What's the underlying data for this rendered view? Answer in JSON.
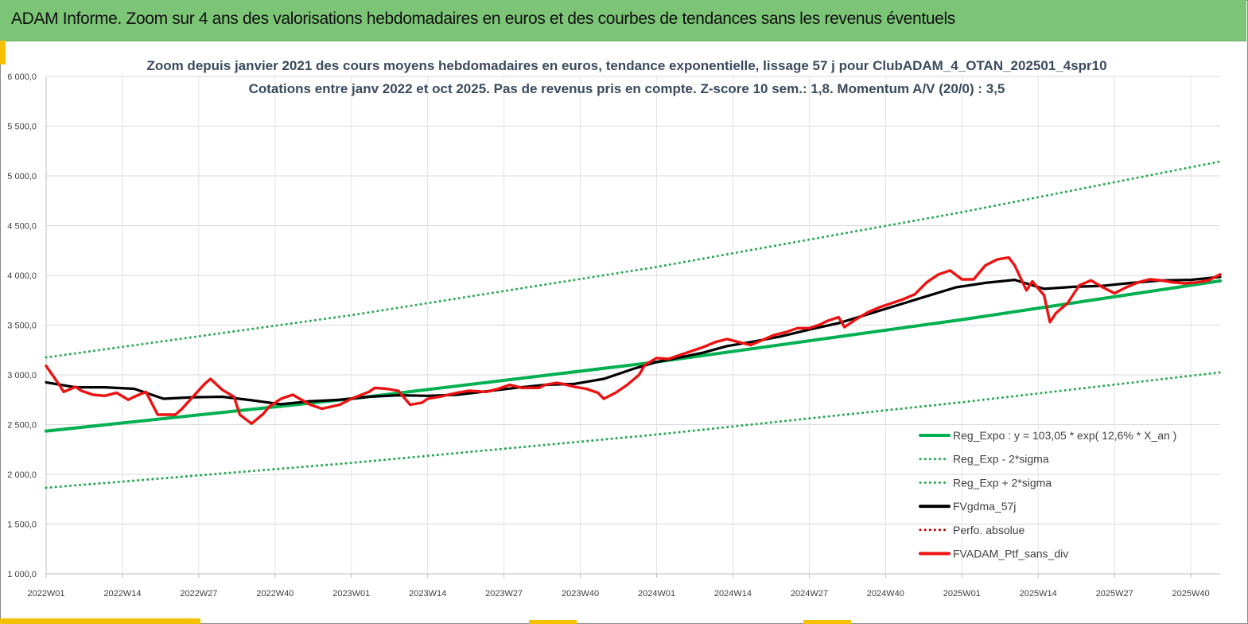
{
  "header": {
    "title": "ADAM Informe. Zoom sur 4 ans des valorisations hebdomadaires en euros et des courbes de tendances sans les revenus éventuels"
  },
  "colors": {
    "header_bg": "#7cc576",
    "accent_gold": "#f5c000",
    "trend_green": "#00b050",
    "band_green": "#22a94f",
    "smooth_black": "#000000",
    "portfolio_red": "#ee1111",
    "perf_red": "#c00000"
  },
  "chart_data": {
    "type": "line",
    "title_line1": "Zoom depuis janvier 2021 des cours moyens hebdomadaires  en euros, tendance exponentielle, lissage 57 j pour ClubADAM_4_OTAN_202501_4spr10",
    "title_line2": "Cotations  entre janv 2022 et oct 2025. Pas de revenus pris en compte. Z-score 10 sem.: 1,8. Momentum A/V (20/0) : 3,5",
    "ylim": [
      1000,
      6000
    ],
    "y_ticks": [
      "1 000,0",
      "1 500,0",
      "2 000,0",
      "2 500,0",
      "3 000,0",
      "3 500,0",
      "4 000,0",
      "4 500,0",
      "5 000,0",
      "5 500,0",
      "6 000,0"
    ],
    "x_ticks": [
      "2022W01",
      "2022W14",
      "2022W27",
      "2022W40",
      "2023W01",
      "2023W14",
      "2023W27",
      "2023W40",
      "2024W01",
      "2024W14",
      "2024W27",
      "2024W40",
      "2025W01",
      "2025W14",
      "2025W27",
      "2025W40"
    ],
    "x_tick_weeks": [
      0,
      13,
      26,
      39,
      52,
      65,
      78,
      91,
      104,
      117,
      130,
      143,
      156,
      169,
      182,
      195
    ],
    "x_range_weeks": [
      0,
      200
    ],
    "grid": true,
    "legend_position": "bottom-right",
    "series": [
      {
        "name": "Reg_Expo : y = 103,05 * exp( 12,6% *  X_an )",
        "style": "solid",
        "color": "#00b050",
        "x": [
          0,
          52,
          104,
          156,
          200
        ],
        "values": [
          2435,
          2760,
          3130,
          3555,
          3945
        ]
      },
      {
        "name": "Reg_Exp - 2*sigma",
        "style": "dotted",
        "color": "#22a94f",
        "x": [
          0,
          52,
          104,
          156,
          200
        ],
        "values": [
          1865,
          2115,
          2400,
          2725,
          3025
        ]
      },
      {
        "name": "Reg_Exp + 2*sigma",
        "style": "dotted",
        "color": "#22a94f",
        "x": [
          0,
          52,
          104,
          156,
          200
        ],
        "values": [
          3175,
          3600,
          4085,
          4635,
          5145
        ]
      },
      {
        "name": "FVgdma_57j",
        "style": "solid",
        "color": "#000000",
        "x": [
          0,
          5,
          10,
          15,
          20,
          25,
          30,
          35,
          40,
          45,
          50,
          55,
          60,
          65,
          70,
          75,
          80,
          85,
          90,
          95,
          100,
          104,
          108,
          112,
          116,
          120,
          125,
          130,
          135,
          140,
          145,
          150,
          155,
          160,
          165,
          170,
          175,
          180,
          185,
          190,
          195,
          200
        ],
        "values": [
          2925,
          2875,
          2875,
          2860,
          2760,
          2775,
          2780,
          2745,
          2705,
          2735,
          2750,
          2780,
          2795,
          2790,
          2800,
          2835,
          2870,
          2900,
          2910,
          2960,
          3060,
          3130,
          3175,
          3225,
          3290,
          3330,
          3385,
          3455,
          3520,
          3610,
          3700,
          3790,
          3880,
          3925,
          3955,
          3865,
          3885,
          3895,
          3925,
          3950,
          3955,
          3985
        ]
      },
      {
        "name": "Perfo. absolue",
        "style": "dotted",
        "color": "#c00000",
        "x": [],
        "values": []
      },
      {
        "name": "FVADAM_Ptf_sans_div",
        "style": "solid",
        "color": "#ee1111",
        "x": [
          0,
          2,
          3,
          5,
          6,
          8,
          10,
          12,
          14,
          15,
          17,
          19,
          22,
          23,
          25,
          27,
          28,
          30,
          32,
          33,
          35,
          37,
          38,
          39,
          40,
          42,
          45,
          47,
          50,
          52,
          55,
          56,
          58,
          60,
          62,
          64,
          65,
          67,
          70,
          72,
          75,
          77,
          79,
          81,
          84,
          85,
          87,
          88,
          90,
          92,
          94,
          95,
          97,
          99,
          101,
          102,
          104,
          106,
          108,
          110,
          112,
          114,
          116,
          118,
          120,
          122,
          124,
          126,
          128,
          130,
          132,
          133,
          135,
          136,
          138,
          140,
          142,
          144,
          146,
          148,
          150,
          152,
          154,
          156,
          158,
          160,
          162,
          164,
          165,
          167,
          168,
          170,
          171,
          172,
          174,
          176,
          178,
          180,
          182,
          184,
          186,
          188,
          190,
          192,
          194,
          196,
          198,
          200
        ],
        "values": [
          3090,
          2920,
          2830,
          2880,
          2840,
          2800,
          2790,
          2820,
          2750,
          2780,
          2830,
          2600,
          2600,
          2650,
          2780,
          2910,
          2960,
          2850,
          2780,
          2600,
          2510,
          2610,
          2680,
          2720,
          2760,
          2800,
          2700,
          2660,
          2700,
          2760,
          2830,
          2870,
          2860,
          2840,
          2700,
          2720,
          2760,
          2780,
          2820,
          2840,
          2830,
          2860,
          2900,
          2870,
          2870,
          2900,
          2920,
          2910,
          2880,
          2860,
          2820,
          2760,
          2820,
          2900,
          3000,
          3100,
          3170,
          3160,
          3200,
          3240,
          3280,
          3330,
          3360,
          3330,
          3300,
          3350,
          3400,
          3430,
          3470,
          3470,
          3510,
          3540,
          3580,
          3480,
          3560,
          3630,
          3680,
          3720,
          3760,
          3810,
          3930,
          4010,
          4050,
          3960,
          3960,
          4100,
          4160,
          4180,
          4100,
          3850,
          3940,
          3800,
          3530,
          3620,
          3720,
          3900,
          3950,
          3880,
          3820,
          3880,
          3930,
          3960,
          3950,
          3930,
          3920,
          3930,
          3950,
          4010
        ]
      }
    ]
  }
}
